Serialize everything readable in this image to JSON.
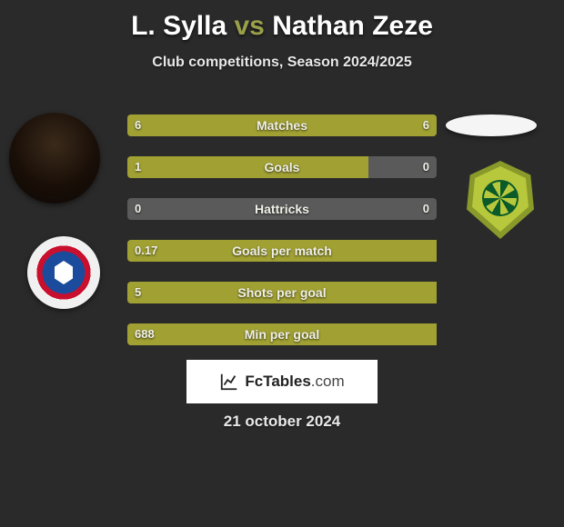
{
  "title": {
    "player1": "L. Sylla",
    "vs": "vs",
    "player2": "Nathan Zeze"
  },
  "subtitle": "Club competitions, Season 2024/2025",
  "colors": {
    "bar_p1": "#a0a033",
    "bar_p2": "#a0a033",
    "bar_bg": "#5a5a5a",
    "title_accent": "#9aa04a",
    "background": "#2a2a2a"
  },
  "stats": [
    {
      "label": "Matches",
      "v1": "6",
      "v2": "6",
      "w1": 50,
      "w2": 50
    },
    {
      "label": "Goals",
      "v1": "1",
      "v2": "0",
      "w1": 78,
      "w2": 0
    },
    {
      "label": "Hattricks",
      "v1": "0",
      "v2": "0",
      "w1": 0,
      "w2": 0
    },
    {
      "label": "Goals per match",
      "v1": "0.17",
      "v2": "",
      "w1": 100,
      "w2": 0
    },
    {
      "label": "Shots per goal",
      "v1": "5",
      "v2": "",
      "w1": 100,
      "w2": 0
    },
    {
      "label": "Min per goal",
      "v1": "688",
      "v2": "",
      "w1": 100,
      "w2": 0
    }
  ],
  "footer": {
    "brand_main": "FcTables",
    "brand_suffix": ".com"
  },
  "date": "21 october 2024",
  "clubs": {
    "left_name": "Racing Club de Strasbourg",
    "right_name": "FC Nantes"
  }
}
